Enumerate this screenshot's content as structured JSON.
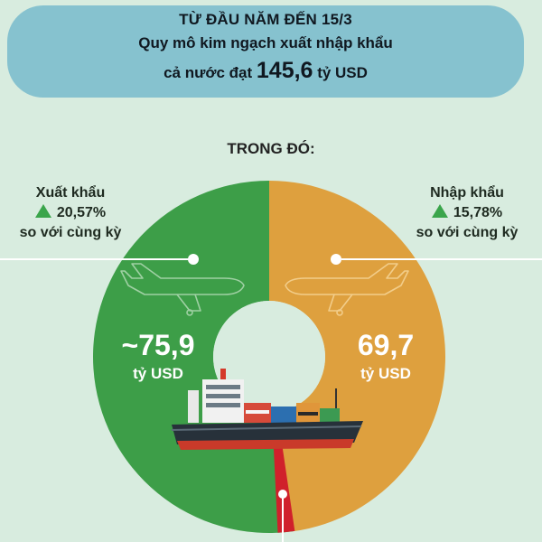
{
  "header": {
    "line1": "TỪ ĐẦU NĂM ĐẾN 15/3",
    "line2": "Quy mô kim ngạch xuất nhập khẩu",
    "line3_prefix": "cả nước đạt",
    "line3_value": "145,6",
    "line3_unit": "tỷ USD"
  },
  "sub_heading": "TRONG ĐÓ:",
  "export": {
    "title": "Xuất khẩu",
    "growth": "20,57%",
    "compare": "so với cùng kỳ",
    "value_label": "~75,9",
    "unit": "tỷ USD"
  },
  "import": {
    "title": "Nhập khẩu",
    "growth": "15,78%",
    "compare": "so với cùng kỳ",
    "value_label": "69,7",
    "unit": "tỷ USD"
  },
  "colors": {
    "export": "#3d9e48",
    "import": "#dea03e",
    "balance": "#d0202b",
    "banner": "#86c2cf",
    "background": "#d8ecdf",
    "up_arrow": "#3aa54b"
  },
  "icons": [
    "airplane-icon",
    "container-ship-icon",
    "up-triangle-icon"
  ],
  "chart_data": {
    "type": "pie",
    "title": "",
    "categories": [
      "Xuất khẩu",
      "Nhập khẩu"
    ],
    "values": [
      75.9,
      69.7
    ],
    "unit": "tỷ USD",
    "total": 145.6
  }
}
